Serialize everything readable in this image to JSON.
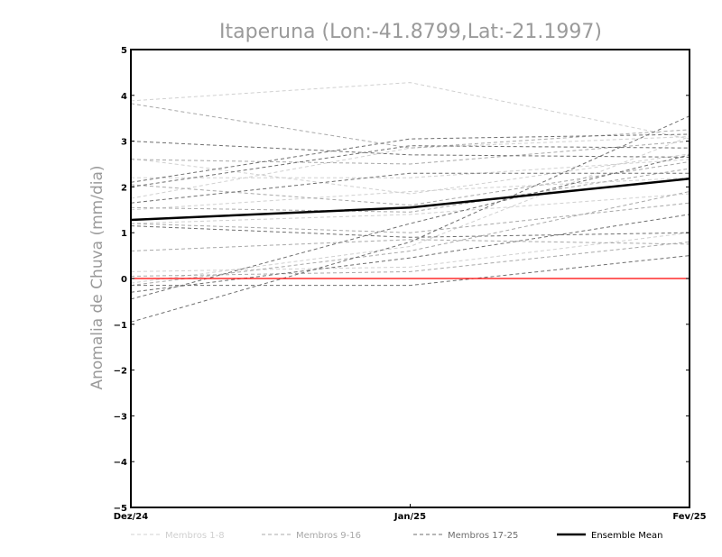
{
  "chart_data": {
    "type": "line",
    "title": "Itaperuna (Lon:-41.8799,Lat:-21.1997)",
    "xlabel": "",
    "ylabel": "Anomalia de Chuva (mm/dia)",
    "categories": [
      "Dez/24",
      "Jan/25",
      "Fev/25"
    ],
    "ylim": [
      -5,
      5
    ],
    "yticks": [
      5,
      4,
      3,
      2,
      1,
      0,
      -1,
      -2,
      -3,
      -4,
      -5
    ],
    "grid": false,
    "legend_position": "bottom",
    "zero_line_color": "#ff0000",
    "groups": [
      {
        "legend": "Membros 1-8",
        "color": "#d0d0d0",
        "dash": "4,3",
        "width": 1,
        "series": [
          [
            3.88,
            4.28,
            3.05
          ],
          [
            2.62,
            1.85,
            2.72
          ],
          [
            2.2,
            2.2,
            2.6
          ],
          [
            1.5,
            1.9,
            2.2
          ],
          [
            1.75,
            2.85,
            3.1
          ],
          [
            0.15,
            0.25,
            1.0
          ],
          [
            -0.1,
            0.7,
            3.1
          ],
          [
            1.2,
            1.4,
            1.85
          ]
        ]
      },
      {
        "legend": "Membros 9-16",
        "color": "#a8a8a8",
        "dash": "4,3",
        "width": 1,
        "series": [
          [
            3.82,
            2.85,
            3.25
          ],
          [
            2.6,
            2.5,
            3.0
          ],
          [
            1.55,
            1.45,
            2.4
          ],
          [
            1.2,
            1.0,
            1.65
          ],
          [
            0.6,
            0.85,
            0.75
          ],
          [
            -0.15,
            0.6,
            1.9
          ],
          [
            0.05,
            0.15,
            0.8
          ],
          [
            2.05,
            1.6,
            2.55
          ]
        ]
      },
      {
        "legend": "Membros 17-25",
        "color": "#6e6e6e",
        "dash": "4,3",
        "width": 1,
        "series": [
          [
            3.0,
            2.7,
            2.65
          ],
          [
            2.1,
            3.05,
            3.15
          ],
          [
            1.65,
            2.3,
            2.3
          ],
          [
            1.15,
            0.9,
            1.0
          ],
          [
            -0.45,
            1.2,
            2.7
          ],
          [
            -0.95,
            0.8,
            3.55
          ],
          [
            -0.3,
            0.45,
            1.4
          ],
          [
            -0.15,
            -0.15,
            0.5
          ],
          [
            2.0,
            2.9,
            2.85
          ]
        ]
      },
      {
        "legend": "Ensemble Mean",
        "color": "#000000",
        "dash": "",
        "width": 2.5,
        "series": [
          [
            1.28,
            1.55,
            2.18
          ]
        ]
      }
    ]
  }
}
